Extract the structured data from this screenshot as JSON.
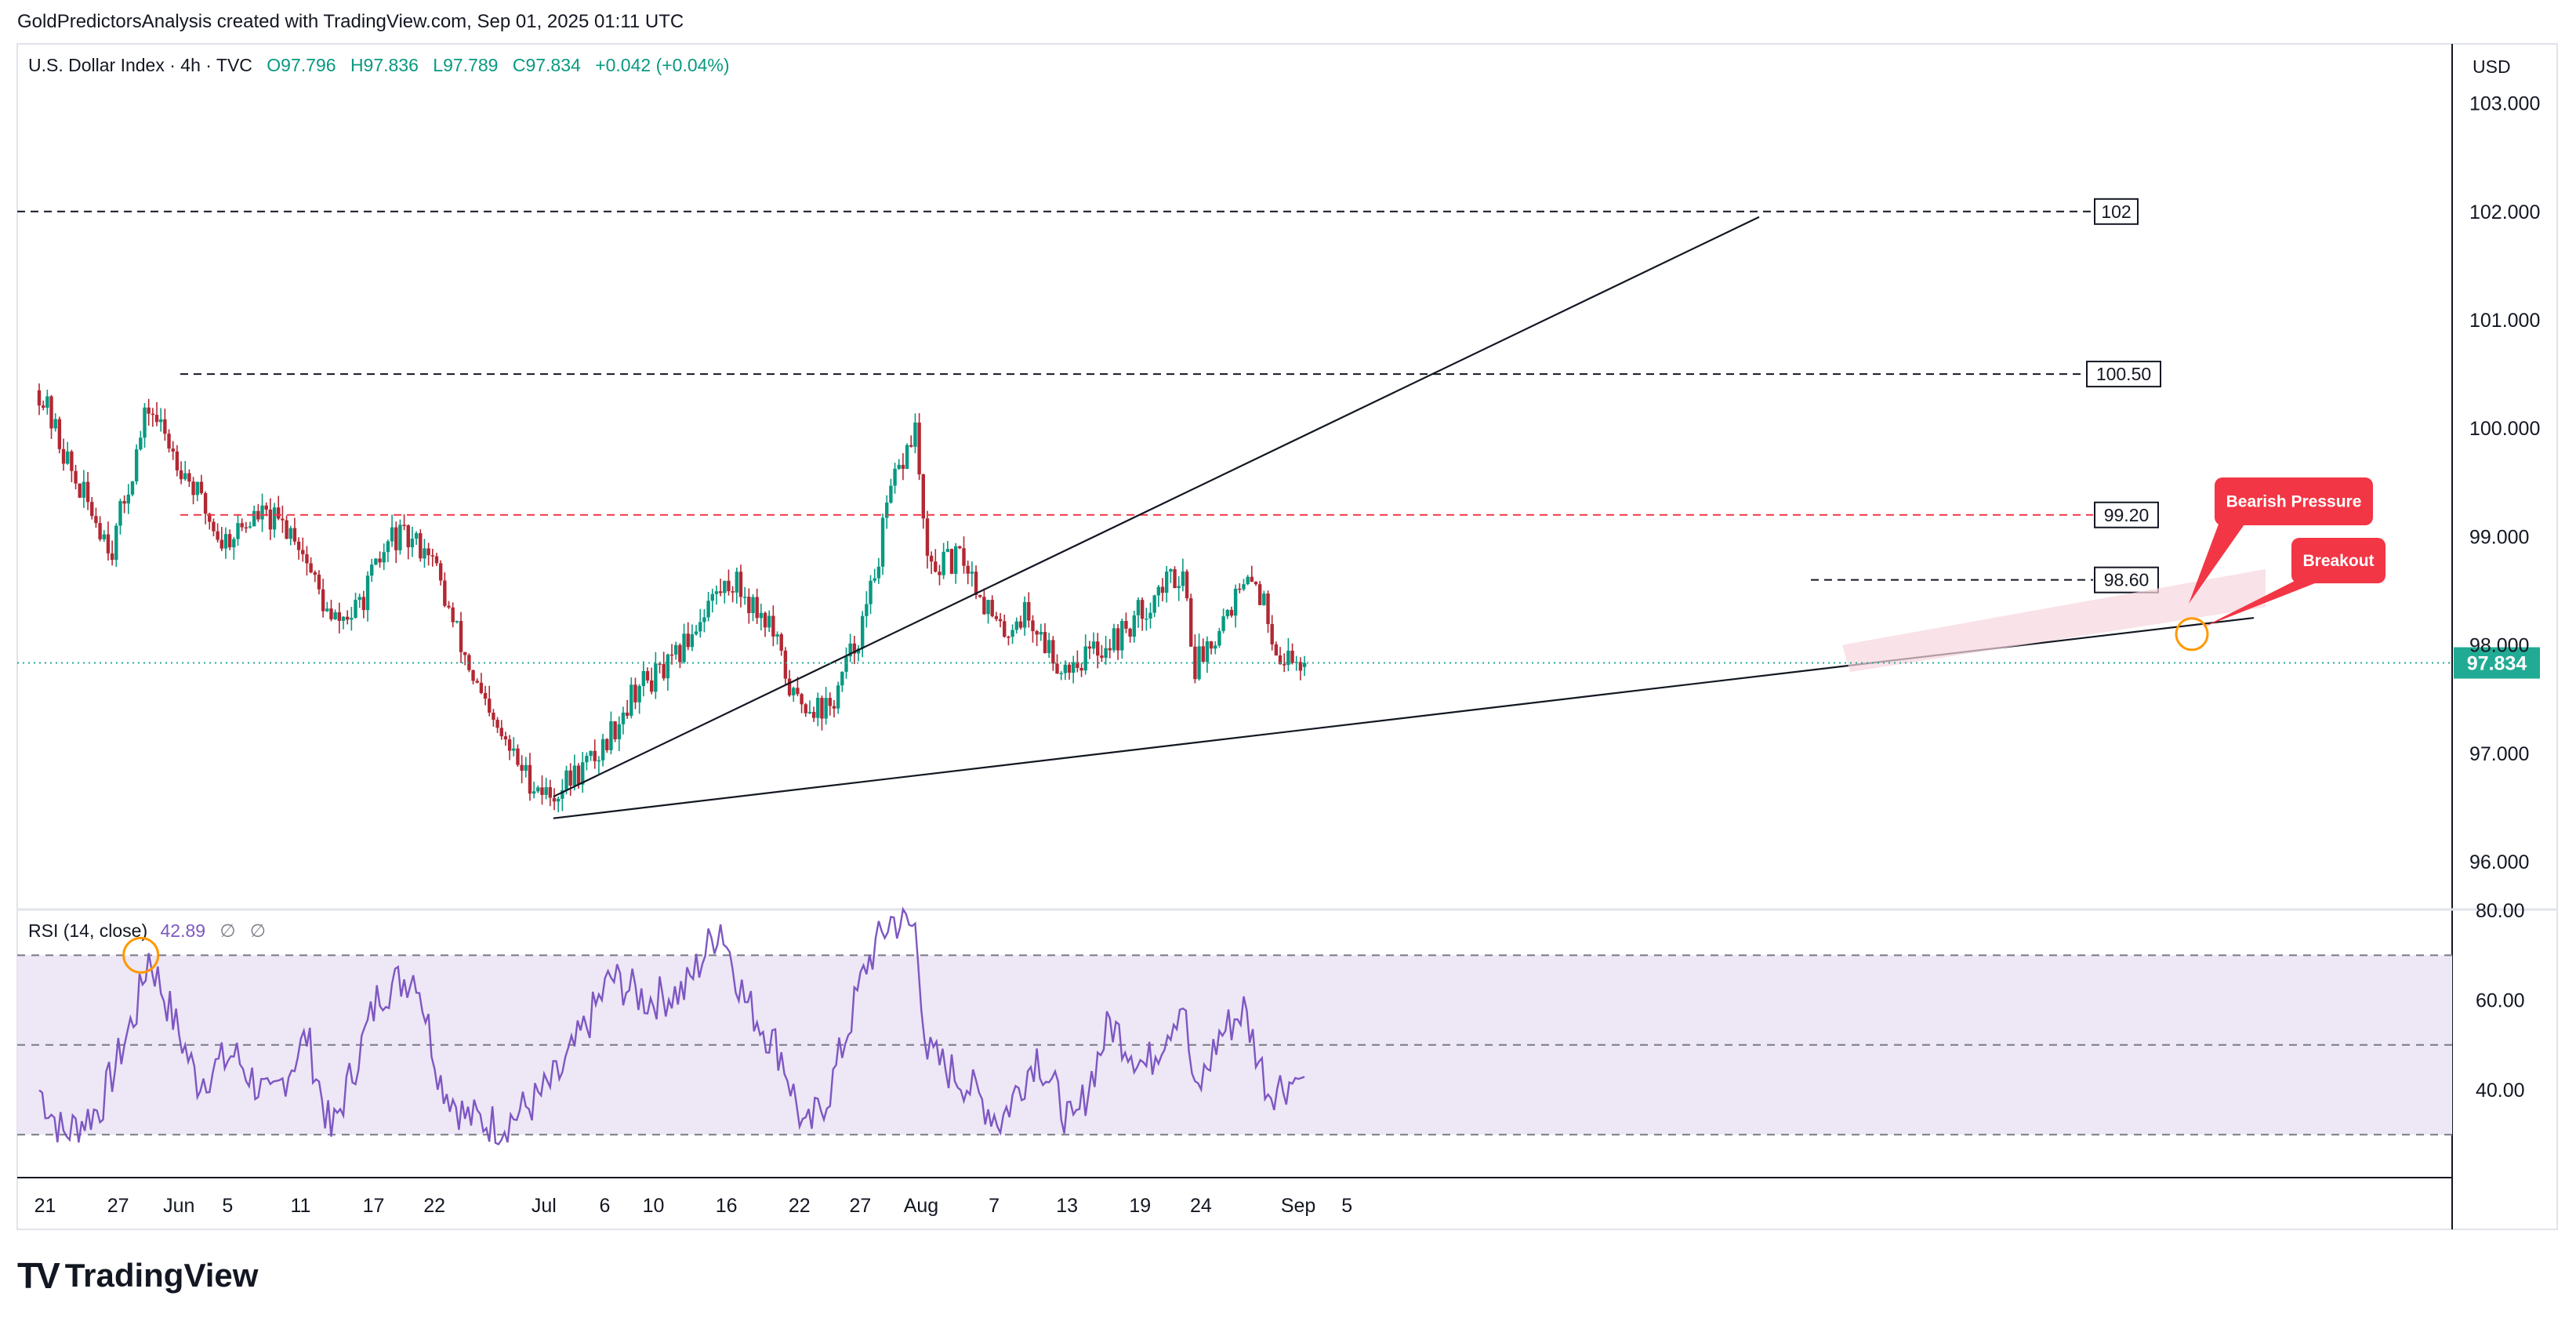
{
  "header": {
    "author": "GoldPredictorsAnalysis created with TradingView.com,",
    "timestamp": "Sep 01, 2025 01:11 UTC"
  },
  "legend": {
    "symbol": "U.S. Dollar Index · 4h · TVC",
    "open": "O97.796",
    "high": "H97.836",
    "low": "L97.789",
    "close": "C97.834",
    "change": "+0.042 (+0.04%)"
  },
  "rsi_legend": {
    "label": "RSI (14, close)",
    "value": "42.89",
    "empty1": "∅",
    "empty2": "∅"
  },
  "axis": {
    "currency": "USD",
    "last_price": "97.834"
  },
  "footer": {
    "brand": "TradingView"
  },
  "colors": {
    "up": "#089981",
    "down": "#b22833",
    "rsi_line": "#7e57c2",
    "rsi_band": "#ede7f6",
    "last_price": "#22ab94",
    "callout": "#f23645",
    "resistance_red": "#f23645",
    "wedge": "#f7d5de"
  },
  "chart_data": [
    {
      "type": "candlestick",
      "title": "U.S. Dollar Index · 4h · TVC",
      "timeframe": "4h",
      "y_axis": {
        "ticks": [
          "96.000",
          "97.000",
          "98.000",
          "99.000",
          "100.000",
          "101.000",
          "102.000",
          "103.000"
        ],
        "range": [
          95.6,
          103.4
        ]
      },
      "x_axis": {
        "ticks": [
          "21",
          "27",
          "Jun",
          "5",
          "11",
          "17",
          "22",
          "Jul",
          "6",
          "10",
          "16",
          "22",
          "27",
          "Aug",
          "7",
          "13",
          "19",
          "24",
          "Sep",
          "5"
        ]
      },
      "price_path": {
        "x": [
          "May 20",
          "May 23",
          "May 26",
          "May 29",
          "Jun 1",
          "Jun 4",
          "Jun 7",
          "Jun 10",
          "Jun 13",
          "Jun 15",
          "Jun 18",
          "Jun 21",
          "Jun 23",
          "Jun 26",
          "Jun 29",
          "Jul 1",
          "Jul 5",
          "Jul 8",
          "Jul 11",
          "Jul 14",
          "Jul 16",
          "Jul 19",
          "Jul 21",
          "Jul 24",
          "Jul 27",
          "Jul 29",
          "Jul 31",
          "Aug 1",
          "Aug 4",
          "Aug 7",
          "Aug 9",
          "Aug 12",
          "Aug 14",
          "Aug 17",
          "Aug 20",
          "Aug 22",
          "Aug 23",
          "Aug 26",
          "Aug 28",
          "Aug 30",
          "Sep 1"
        ],
        "y": [
          100.35,
          99.5,
          98.9,
          100.2,
          99.6,
          98.95,
          99.2,
          99.05,
          98.2,
          98.3,
          99.0,
          98.9,
          98.2,
          97.3,
          96.8,
          96.6,
          97.0,
          97.6,
          97.8,
          98.4,
          98.6,
          98.2,
          97.5,
          97.4,
          98.3,
          99.4,
          100.0,
          98.7,
          98.8,
          98.1,
          98.3,
          97.8,
          97.9,
          98.1,
          98.5,
          98.7,
          97.8,
          98.4,
          98.6,
          97.9,
          97.834
        ]
      },
      "annotations": [
        {
          "label": "102",
          "value": 102.0,
          "style": "dashed"
        },
        {
          "label": "100.50",
          "value": 100.5,
          "style": "dashed"
        },
        {
          "label": "99.20",
          "value": 99.2,
          "style": "dashed-red"
        },
        {
          "label": "98.60",
          "value": 98.6,
          "style": "dashed-short"
        },
        {
          "label": "Bearish Pressure",
          "style": "callout"
        },
        {
          "label": "Breakout",
          "style": "callout"
        }
      ],
      "last_price": 97.834
    },
    {
      "type": "line",
      "title": "RSI (14, close)",
      "y_axis": {
        "ticks": [
          "40.00",
          "60.00",
          "80.00"
        ],
        "range": [
          20,
          82
        ],
        "bands": [
          30,
          50,
          70
        ]
      },
      "series": [
        {
          "name": "RSI (14, close)",
          "x": [
            "May 20",
            "May 22",
            "May 25",
            "May 28",
            "May 29",
            "Jun 2",
            "Jun 5",
            "Jun 8",
            "Jun 11",
            "Jun 13",
            "Jun 17",
            "Jun 20",
            "Jun 22",
            "Jun 24",
            "Jun 27",
            "Jun 30",
            "Jul 2",
            "Jul 6",
            "Jul 9",
            "Jul 12",
            "Jul 15",
            "Jul 17",
            "Jul 20",
            "Jul 22",
            "Jul 24",
            "Jul 27",
            "Jul 29",
            "Jul 31",
            "Aug 1",
            "Aug 4",
            "Aug 7",
            "Aug 10",
            "Aug 13",
            "Aug 16",
            "Aug 19",
            "Aug 22",
            "Aug 23",
            "Aug 25",
            "Aug 27",
            "Aug 29",
            "Sep 1"
          ],
          "y": [
            40,
            30,
            36,
            58,
            70,
            42,
            48,
            37,
            52,
            30,
            62,
            66,
            42,
            34,
            32,
            38,
            44,
            65,
            60,
            62,
            77,
            60,
            48,
            30,
            40,
            68,
            78,
            76,
            48,
            42,
            33,
            48,
            31,
            55,
            45,
            60,
            38,
            52,
            58,
            40,
            42.89
          ]
        }
      ]
    }
  ]
}
